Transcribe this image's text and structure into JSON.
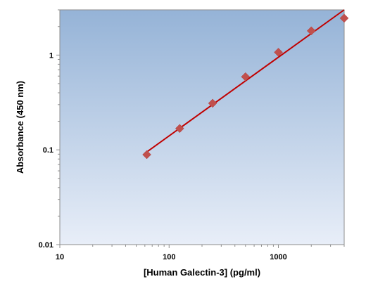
{
  "chart_data": {
    "type": "scatter",
    "title": "",
    "xlabel": "[Human Galectin-3] (pg/ml)",
    "ylabel": "Absorbance (450 nm)",
    "x_scale": "log",
    "y_scale": "log",
    "xlim": [
      10,
      4000
    ],
    "ylim": [
      0.01,
      3
    ],
    "x_ticks": [
      {
        "value": 10,
        "label": "10"
      },
      {
        "value": 100,
        "label": "100"
      },
      {
        "value": 1000,
        "label": "1000"
      }
    ],
    "y_ticks": [
      {
        "value": 0.01,
        "label": "0.01"
      },
      {
        "value": 0.1,
        "label": "0.1"
      },
      {
        "value": 1,
        "label": "1"
      }
    ],
    "grid": false,
    "legend": "none",
    "series": [
      {
        "marker": "diamond",
        "color": "#c0504d",
        "x": [
          62.5,
          125,
          250,
          500,
          1000,
          2000,
          4000
        ],
        "y": [
          0.089,
          0.168,
          0.31,
          0.59,
          1.07,
          1.8,
          2.45
        ]
      }
    ],
    "fit_line": {
      "color": "#c00000",
      "x": [
        62.5,
        4000
      ],
      "y": [
        0.095,
        3.0
      ]
    },
    "colors": {
      "plot_top": "#95b3d7",
      "plot_bottom": "#e8eef8"
    }
  }
}
